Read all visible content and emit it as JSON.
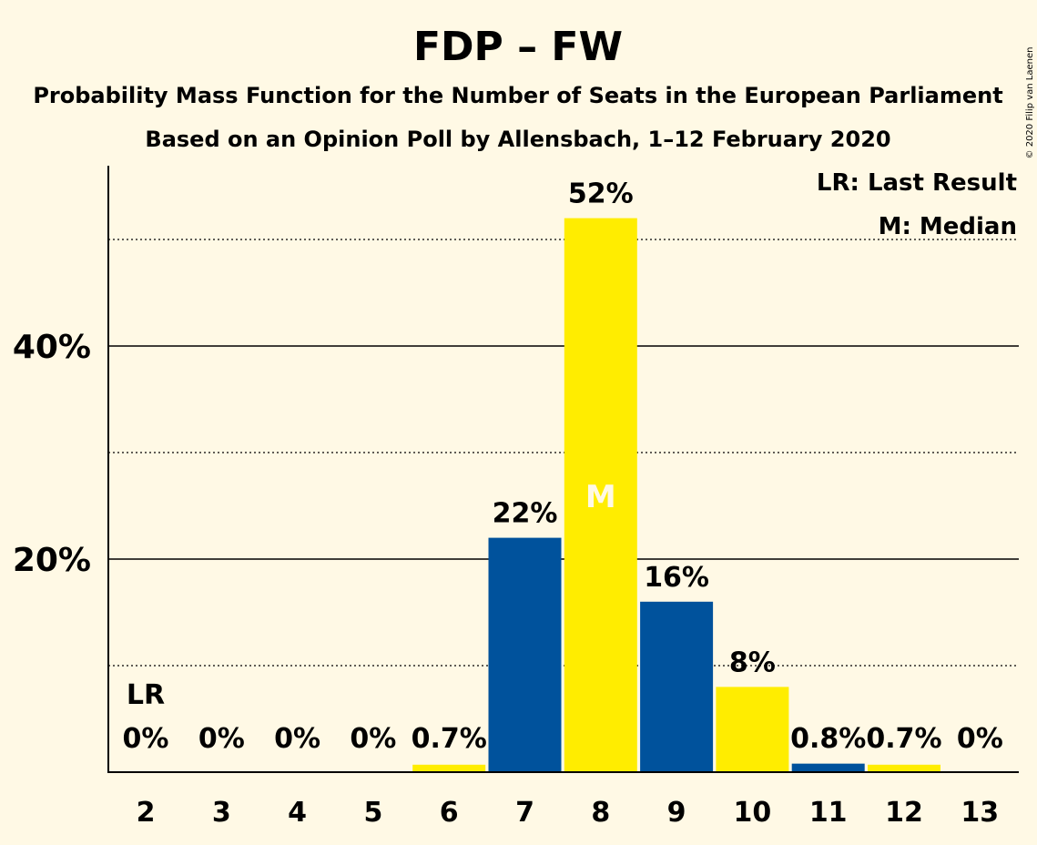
{
  "header": {
    "title": "FDP – FW",
    "subtitle1": "Probability Mass Function for the Number of Seats in the European Parliament",
    "subtitle2": "Based on an Opinion Poll by Allensbach, 1–12 February 2020",
    "copyright": "© 2020 Filip van Laenen"
  },
  "legend": {
    "lr": "LR: Last Result",
    "m": "M: Median",
    "placement": "top-right"
  },
  "colors": {
    "background": "#FFF9E5",
    "blue": "#00529C",
    "yellow": "#FFED00",
    "median_marker": "#FFF9E5"
  },
  "chart_data": {
    "type": "bar",
    "categories": [
      "2",
      "3",
      "4",
      "5",
      "6",
      "7",
      "8",
      "9",
      "10",
      "11",
      "12",
      "13"
    ],
    "values": [
      0,
      0,
      0,
      0,
      0.7,
      22,
      52,
      16,
      8,
      0.8,
      0.7,
      0
    ],
    "value_labels": [
      "0%",
      "0%",
      "0%",
      "0%",
      "0.7%",
      "22%",
      "52%",
      "16%",
      "8%",
      "0.8%",
      "0.7%",
      "0%"
    ],
    "bar_colors": [
      "yellow",
      "blue",
      "yellow",
      "blue",
      "yellow",
      "blue",
      "yellow",
      "blue",
      "yellow",
      "blue",
      "yellow",
      "blue"
    ],
    "ylim": [
      0,
      56
    ],
    "yticks_major": [
      {
        "value": 20,
        "label": "20%"
      },
      {
        "value": 40,
        "label": "40%"
      }
    ],
    "yticks_minor": [
      10,
      30,
      50
    ],
    "last_result": {
      "category": "2",
      "label": "LR"
    },
    "median": {
      "category": "8",
      "label": "M"
    },
    "xlabel": "",
    "ylabel": ""
  }
}
